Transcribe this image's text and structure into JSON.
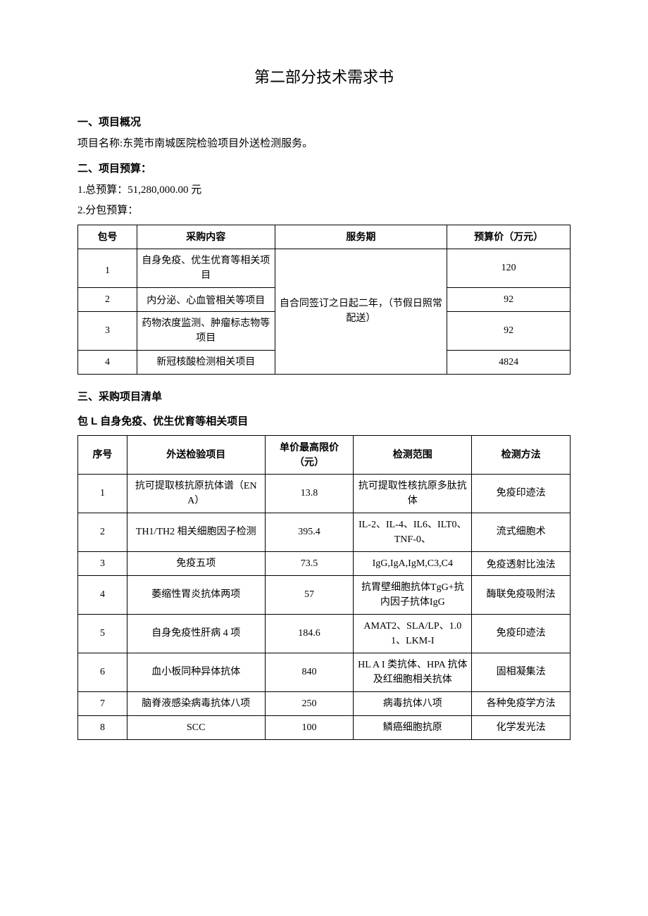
{
  "title": "第二部分技术需求书",
  "s1_head": "一、项目概况",
  "s1_line": "项目名称:东莞市南城医院检验项目外送检测服务。",
  "s2_head": "二、项目预算：",
  "s2_l1": "1.总预算：51,280,000.00 元",
  "s2_l2": "2.分包预算：",
  "tbl1": {
    "headers": [
      "包号",
      "采购内容",
      "服务期",
      "预算价（万元）"
    ],
    "service_period": "自合同签订之日起二年，（节假日照常配送）",
    "rows": [
      {
        "no": "1",
        "content": "自身免疫、优生优育等相关项目",
        "price": "120"
      },
      {
        "no": "2",
        "content": "内分泌、心血管相关等项目",
        "price": "92"
      },
      {
        "no": "3",
        "content": "药物浓度监测、肿瘤标志物等项目",
        "price": "92"
      },
      {
        "no": "4",
        "content": "新冠核酸检测相关项目",
        "price": "4824"
      }
    ]
  },
  "s3_head": "三、采购项目清单",
  "s3_sub": "包 L 自身免疫、优生优育等相关项目",
  "tbl2": {
    "headers": [
      "序号",
      "外送检验项目",
      "单价最高限价（元）",
      "检测范围",
      "检测方法"
    ],
    "rows": [
      {
        "no": "1",
        "item": "抗可提取核抗原抗体谱（ENA）",
        "price": "13.8",
        "scope": "抗可提取性核抗原多肽抗体",
        "method": "免疫印迹法"
      },
      {
        "no": "2",
        "item": "TH1/TH2 相关细胞因子检测",
        "price": "395.4",
        "scope": "IL-2、IL-4、IL6、ILT0、TNF-0、",
        "method": "流式细胞术"
      },
      {
        "no": "3",
        "item": "免疫五项",
        "price": "73.5",
        "scope": "IgG,IgA,IgM,C3,C4",
        "method": "免疫透射比浊法"
      },
      {
        "no": "4",
        "item": "萎缩性胃炎抗体两项",
        "price": "57",
        "scope": "抗胃壁细胞抗体TgG+抗内因子抗体IgG",
        "method": "酶联免疫吸附法"
      },
      {
        "no": "5",
        "item": "自身免疫性肝病 4 项",
        "price": "184.6",
        "scope": "AMAT2、SLA/LP、1.01、LKM-I",
        "method": "免疫印迹法"
      },
      {
        "no": "6",
        "item": "血小板同种异体抗体",
        "price": "840",
        "scope": "HL A I 类抗体、HPA 抗体及红细胞相关抗体",
        "method": "固相凝集法"
      },
      {
        "no": "7",
        "item": "脑脊液感染病毒抗体八项",
        "price": "250",
        "scope": "病毒抗体八项",
        "method": "各种免疫学方法"
      },
      {
        "no": "8",
        "item": "SCC",
        "price": "100",
        "scope": "鳞癌细胞抗原",
        "method": "化学发光法"
      }
    ]
  }
}
